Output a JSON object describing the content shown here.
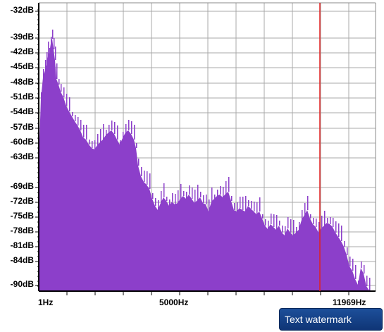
{
  "spectrum": {
    "y_labels": [
      "-32dB",
      "-39dB",
      "-42dB",
      "-45dB",
      "-48dB",
      "-51dB",
      "-54dB",
      "-57dB",
      "-60dB",
      "-63dB",
      "-69dB",
      "-72dB",
      "-75dB",
      "-78dB",
      "-81dB",
      "-84dB",
      "-90dB"
    ],
    "x_labels": [
      "1Hz",
      "5000Hz",
      "11969Hz"
    ],
    "fill_color": "#8c3fca",
    "marker_color": "#e02020"
  },
  "watermark": {
    "label": "Text watermark"
  }
}
